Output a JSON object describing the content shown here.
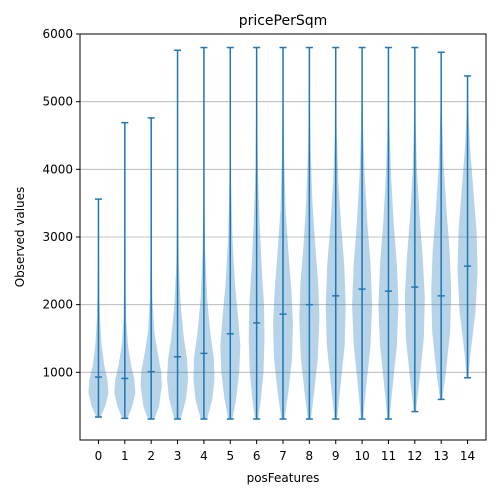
{
  "chart_data": {
    "type": "violin",
    "title": "pricePerSqm",
    "xlabel": "posFeatures",
    "ylabel": "Observed values",
    "ylim": [
      0,
      6000
    ],
    "yticks": [
      1000,
      2000,
      3000,
      4000,
      5000,
      6000
    ],
    "y_grid": true,
    "categories": [
      "0",
      "1",
      "2",
      "3",
      "4",
      "5",
      "6",
      "7",
      "8",
      "9",
      "10",
      "11",
      "12",
      "13",
      "14"
    ],
    "colors": {
      "line": "#1f77b4",
      "body": "#1f77b4",
      "grid": "#b0b0b0",
      "frame": "#000000"
    },
    "violins": [
      {
        "x": "0",
        "min": 340,
        "max": 3560,
        "median": 930,
        "shape": [
          [
            340,
            0.2
          ],
          [
            500,
            0.65
          ],
          [
            700,
            0.95
          ],
          [
            900,
            0.85
          ],
          [
            1100,
            0.55
          ],
          [
            1400,
            0.3
          ],
          [
            1800,
            0.15
          ],
          [
            2300,
            0.07
          ],
          [
            3000,
            0.03
          ],
          [
            3560,
            0.01
          ]
        ]
      },
      {
        "x": "1",
        "min": 320,
        "max": 4690,
        "median": 910,
        "shape": [
          [
            320,
            0.25
          ],
          [
            500,
            0.7
          ],
          [
            700,
            1.0
          ],
          [
            900,
            0.9
          ],
          [
            1100,
            0.6
          ],
          [
            1400,
            0.3
          ],
          [
            1800,
            0.12
          ],
          [
            2500,
            0.05
          ],
          [
            3500,
            0.02
          ],
          [
            4690,
            0.01
          ]
        ]
      },
      {
        "x": "2",
        "min": 310,
        "max": 4760,
        "median": 1010,
        "shape": [
          [
            310,
            0.3
          ],
          [
            500,
            0.75
          ],
          [
            800,
            1.0
          ],
          [
            1000,
            0.95
          ],
          [
            1300,
            0.6
          ],
          [
            1600,
            0.3
          ],
          [
            2100,
            0.12
          ],
          [
            2800,
            0.05
          ],
          [
            3800,
            0.02
          ],
          [
            4760,
            0.01
          ]
        ]
      },
      {
        "x": "3",
        "min": 310,
        "max": 5760,
        "median": 1230,
        "shape": [
          [
            310,
            0.3
          ],
          [
            600,
            0.8
          ],
          [
            900,
            1.0
          ],
          [
            1200,
            0.9
          ],
          [
            1500,
            0.6
          ],
          [
            2000,
            0.3
          ],
          [
            2600,
            0.12
          ],
          [
            3500,
            0.05
          ],
          [
            4600,
            0.02
          ],
          [
            5760,
            0.01
          ]
        ]
      },
      {
        "x": "4",
        "min": 310,
        "max": 5800,
        "median": 1280,
        "shape": [
          [
            310,
            0.3
          ],
          [
            600,
            0.8
          ],
          [
            900,
            1.0
          ],
          [
            1200,
            0.95
          ],
          [
            1600,
            0.6
          ],
          [
            2100,
            0.3
          ],
          [
            2800,
            0.12
          ],
          [
            3600,
            0.05
          ],
          [
            4700,
            0.02
          ],
          [
            5800,
            0.01
          ]
        ]
      },
      {
        "x": "5",
        "min": 310,
        "max": 5800,
        "median": 1570,
        "shape": [
          [
            310,
            0.2
          ],
          [
            600,
            0.55
          ],
          [
            1000,
            0.85
          ],
          [
            1400,
            0.95
          ],
          [
            1800,
            0.75
          ],
          [
            2300,
            0.45
          ],
          [
            3000,
            0.2
          ],
          [
            3800,
            0.08
          ],
          [
            4800,
            0.03
          ],
          [
            5800,
            0.01
          ]
        ]
      },
      {
        "x": "6",
        "min": 310,
        "max": 5800,
        "median": 1730,
        "shape": [
          [
            310,
            0.15
          ],
          [
            600,
            0.4
          ],
          [
            1000,
            0.65
          ],
          [
            1500,
            0.75
          ],
          [
            2000,
            0.7
          ],
          [
            2500,
            0.5
          ],
          [
            3200,
            0.28
          ],
          [
            4000,
            0.12
          ],
          [
            5000,
            0.04
          ],
          [
            5800,
            0.01
          ]
        ]
      },
      {
        "x": "7",
        "min": 310,
        "max": 5800,
        "median": 1860,
        "shape": [
          [
            310,
            0.15
          ],
          [
            700,
            0.5
          ],
          [
            1200,
            0.85
          ],
          [
            1700,
            0.95
          ],
          [
            2200,
            0.8
          ],
          [
            2800,
            0.5
          ],
          [
            3400,
            0.25
          ],
          [
            4200,
            0.1
          ],
          [
            5000,
            0.04
          ],
          [
            5800,
            0.01
          ]
        ]
      },
      {
        "x": "8",
        "min": 310,
        "max": 5800,
        "median": 2000,
        "shape": [
          [
            310,
            0.15
          ],
          [
            700,
            0.45
          ],
          [
            1200,
            0.8
          ],
          [
            1800,
            0.95
          ],
          [
            2300,
            0.85
          ],
          [
            2900,
            0.55
          ],
          [
            3500,
            0.3
          ],
          [
            4300,
            0.12
          ],
          [
            5100,
            0.04
          ],
          [
            5800,
            0.01
          ]
        ]
      },
      {
        "x": "9",
        "min": 310,
        "max": 5800,
        "median": 2130,
        "shape": [
          [
            310,
            0.12
          ],
          [
            800,
            0.45
          ],
          [
            1400,
            0.85
          ],
          [
            2000,
            0.95
          ],
          [
            2600,
            0.8
          ],
          [
            3200,
            0.5
          ],
          [
            3800,
            0.25
          ],
          [
            4500,
            0.1
          ],
          [
            5200,
            0.03
          ],
          [
            5800,
            0.01
          ]
        ]
      },
      {
        "x": "10",
        "min": 310,
        "max": 5800,
        "median": 2230,
        "shape": [
          [
            310,
            0.1
          ],
          [
            800,
            0.4
          ],
          [
            1400,
            0.8
          ],
          [
            2000,
            0.95
          ],
          [
            2600,
            0.8
          ],
          [
            3200,
            0.5
          ],
          [
            3900,
            0.25
          ],
          [
            4600,
            0.1
          ],
          [
            5300,
            0.03
          ],
          [
            5800,
            0.01
          ]
        ]
      },
      {
        "x": "11",
        "min": 310,
        "max": 5800,
        "median": 2200,
        "shape": [
          [
            310,
            0.1
          ],
          [
            800,
            0.4
          ],
          [
            1400,
            0.8
          ],
          [
            2000,
            0.95
          ],
          [
            2600,
            0.8
          ],
          [
            3200,
            0.5
          ],
          [
            3900,
            0.25
          ],
          [
            4600,
            0.1
          ],
          [
            5300,
            0.03
          ],
          [
            5800,
            0.01
          ]
        ]
      },
      {
        "x": "12",
        "min": 420,
        "max": 5800,
        "median": 2260,
        "shape": [
          [
            420,
            0.1
          ],
          [
            900,
            0.45
          ],
          [
            1500,
            0.85
          ],
          [
            2100,
            0.95
          ],
          [
            2700,
            0.75
          ],
          [
            3300,
            0.45
          ],
          [
            4000,
            0.2
          ],
          [
            4700,
            0.08
          ],
          [
            5300,
            0.03
          ],
          [
            5800,
            0.01
          ]
        ]
      },
      {
        "x": "13",
        "min": 600,
        "max": 5730,
        "median": 2130,
        "shape": [
          [
            600,
            0.1
          ],
          [
            1000,
            0.45
          ],
          [
            1600,
            0.85
          ],
          [
            2200,
            0.95
          ],
          [
            2800,
            0.8
          ],
          [
            3400,
            0.5
          ],
          [
            4100,
            0.22
          ],
          [
            4800,
            0.08
          ],
          [
            5300,
            0.03
          ],
          [
            5730,
            0.01
          ]
        ]
      },
      {
        "x": "14",
        "min": 920,
        "max": 5380,
        "median": 2570,
        "shape": [
          [
            920,
            0.08
          ],
          [
            1300,
            0.3
          ],
          [
            1900,
            0.75
          ],
          [
            2500,
            0.95
          ],
          [
            3100,
            0.85
          ],
          [
            3700,
            0.55
          ],
          [
            4300,
            0.25
          ],
          [
            4800,
            0.1
          ],
          [
            5150,
            0.04
          ],
          [
            5380,
            0.01
          ]
        ]
      }
    ]
  }
}
